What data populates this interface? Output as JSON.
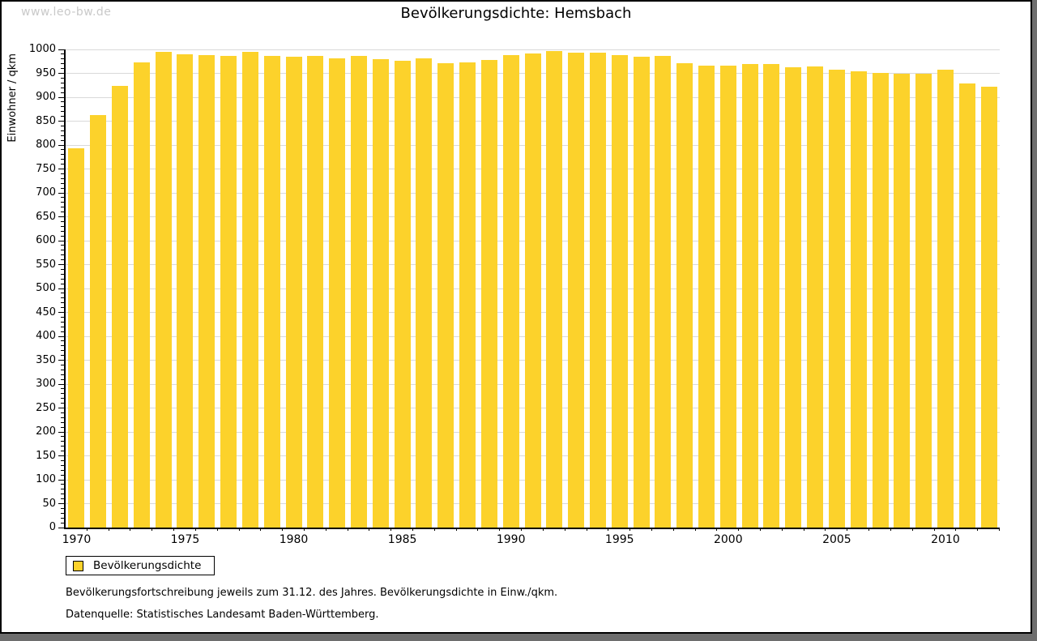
{
  "window": {
    "watermark": "www.leo-bw.de"
  },
  "title": "Bevölkerungsdichte: Hemsbach",
  "legend": {
    "label": "Bevölkerungsdichte"
  },
  "footnotes": {
    "line1": "Bevölkerungsfortschreibung jeweils zum 31.12. des Jahres. Bevölkerungsdichte in Einw./qkm.",
    "line2": "Datenquelle: Statistisches Landesamt Baden-Württemberg."
  },
  "chart_data": {
    "type": "bar",
    "title": "Bevölkerungsdichte: Hemsbach",
    "xlabel": "",
    "ylabel": "Einwohner / qkm",
    "ylim": [
      0,
      1000
    ],
    "y_major_step": 50,
    "y_minor_step": 10,
    "grid": true,
    "legend_position": "bottom-left",
    "bar_color": "#fcd22b",
    "gridline_color": "#d9d9d9",
    "x": [
      1970,
      1971,
      1972,
      1973,
      1974,
      1975,
      1976,
      1977,
      1978,
      1979,
      1980,
      1981,
      1982,
      1983,
      1984,
      1985,
      1986,
      1987,
      1988,
      1989,
      1990,
      1991,
      1992,
      1993,
      1994,
      1995,
      1996,
      1997,
      1998,
      1999,
      2000,
      2001,
      2002,
      2003,
      2004,
      2005,
      2006,
      2007,
      2008,
      2009,
      2010,
      2011,
      2012
    ],
    "values": [
      793,
      863,
      923,
      973,
      995,
      990,
      988,
      987,
      995,
      986,
      985,
      987,
      982,
      987,
      980,
      976,
      982,
      971,
      973,
      978,
      988,
      991,
      996,
      994,
      993,
      988,
      985,
      986,
      972,
      966,
      966,
      970,
      970,
      962,
      964,
      958,
      955,
      951,
      950,
      950,
      958,
      929,
      922
    ],
    "x_tick_labels": [
      "1970",
      "1975",
      "1980",
      "1985",
      "1990",
      "1995",
      "2000",
      "2005",
      "2010"
    ],
    "y_tick_labels": [
      "0",
      "50",
      "100",
      "150",
      "200",
      "250",
      "300",
      "350",
      "400",
      "450",
      "500",
      "550",
      "600",
      "650",
      "700",
      "750",
      "800",
      "850",
      "900",
      "950",
      "1000"
    ]
  }
}
